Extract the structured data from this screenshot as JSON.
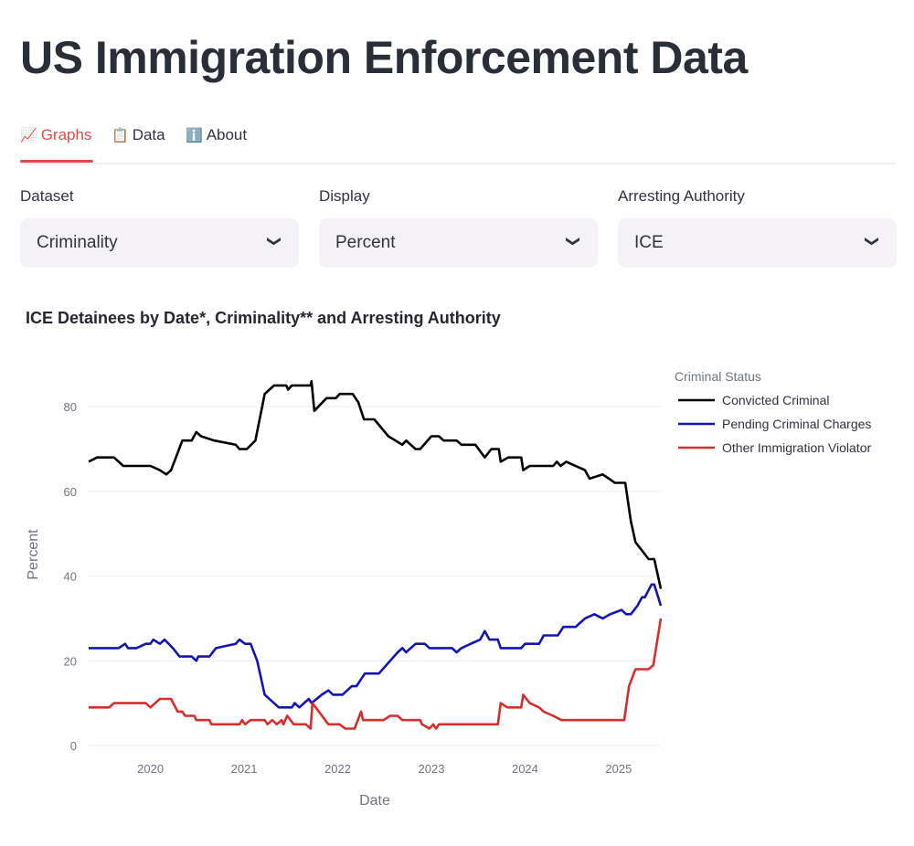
{
  "header": {
    "title": "US Immigration Enforcement Data"
  },
  "tabs": [
    {
      "label": "Graphs",
      "icon": "chart-increasing-icon",
      "active": true
    },
    {
      "label": "Data",
      "icon": "clipboard-icon",
      "active": false
    },
    {
      "label": "About",
      "icon": "info-icon",
      "active": false
    }
  ],
  "filters": [
    {
      "label": "Dataset",
      "value": "Criminality"
    },
    {
      "label": "Display",
      "value": "Percent"
    },
    {
      "label": "Arresting Authority",
      "value": "ICE"
    }
  ],
  "colors": {
    "accent": "#e04a4a",
    "convicted": "#000000",
    "pending": "#1414b4",
    "other": "#d62d2d"
  },
  "chart_data": {
    "type": "line",
    "title": "ICE Detainees by Date*, Criminality** and Arresting Authority",
    "xlabel": "Date",
    "ylabel": "Percent",
    "xlim": [
      2019.34,
      2025.45
    ],
    "ylim": [
      0,
      88
    ],
    "x_ticks": [
      "2020",
      "2021",
      "2022",
      "2023",
      "2024",
      "2025"
    ],
    "y_ticks": [
      "0",
      "20",
      "40",
      "60",
      "80"
    ],
    "grid": true,
    "legend": {
      "title": "Criminal Status",
      "placement": "right"
    },
    "series": [
      {
        "name": "Convicted Criminal",
        "color": "#000000",
        "points": [
          [
            2019.34,
            67
          ],
          [
            2019.43,
            68
          ],
          [
            2019.61,
            68
          ],
          [
            2019.71,
            66
          ],
          [
            2020.0,
            66
          ],
          [
            2020.1,
            65
          ],
          [
            2020.17,
            64
          ],
          [
            2020.22,
            65
          ],
          [
            2020.34,
            72
          ],
          [
            2020.44,
            72
          ],
          [
            2020.49,
            74
          ],
          [
            2020.54,
            73
          ],
          [
            2020.68,
            72
          ],
          [
            2020.91,
            71
          ],
          [
            2020.95,
            70
          ],
          [
            2021.03,
            70
          ],
          [
            2021.12,
            72
          ],
          [
            2021.22,
            83
          ],
          [
            2021.32,
            85
          ],
          [
            2021.45,
            85
          ],
          [
            2021.47,
            84
          ],
          [
            2021.51,
            85
          ],
          [
            2021.71,
            85
          ],
          [
            2021.72,
            86
          ],
          [
            2021.75,
            79
          ],
          [
            2021.88,
            82
          ],
          [
            2021.98,
            82
          ],
          [
            2022.02,
            83
          ],
          [
            2022.16,
            83
          ],
          [
            2022.22,
            81
          ],
          [
            2022.28,
            77
          ],
          [
            2022.39,
            77
          ],
          [
            2022.54,
            73
          ],
          [
            2022.69,
            71
          ],
          [
            2022.73,
            72
          ],
          [
            2022.83,
            70
          ],
          [
            2022.88,
            70
          ],
          [
            2023.0,
            73
          ],
          [
            2023.08,
            73
          ],
          [
            2023.13,
            72
          ],
          [
            2023.27,
            72
          ],
          [
            2023.32,
            71
          ],
          [
            2023.47,
            71
          ],
          [
            2023.57,
            68
          ],
          [
            2023.64,
            70
          ],
          [
            2023.72,
            70
          ],
          [
            2023.74,
            67
          ],
          [
            2023.82,
            68
          ],
          [
            2023.96,
            68
          ],
          [
            2023.98,
            65
          ],
          [
            2024.05,
            66
          ],
          [
            2024.3,
            66
          ],
          [
            2024.34,
            67
          ],
          [
            2024.38,
            66
          ],
          [
            2024.44,
            67
          ],
          [
            2024.64,
            65
          ],
          [
            2024.69,
            63
          ],
          [
            2024.83,
            64
          ],
          [
            2024.96,
            62
          ],
          [
            2025.07,
            62
          ],
          [
            2025.13,
            53
          ],
          [
            2025.18,
            48
          ],
          [
            2025.32,
            44
          ],
          [
            2025.38,
            44
          ],
          [
            2025.45,
            37
          ]
        ]
      },
      {
        "name": "Pending Criminal Charges",
        "color": "#1414b4",
        "points": [
          [
            2019.34,
            23
          ],
          [
            2019.66,
            23
          ],
          [
            2019.73,
            24
          ],
          [
            2019.76,
            23
          ],
          [
            2019.85,
            23
          ],
          [
            2019.95,
            24
          ],
          [
            2020.0,
            24
          ],
          [
            2020.03,
            25
          ],
          [
            2020.1,
            24
          ],
          [
            2020.15,
            25
          ],
          [
            2020.24,
            23
          ],
          [
            2020.31,
            21
          ],
          [
            2020.44,
            21
          ],
          [
            2020.49,
            20
          ],
          [
            2020.51,
            21
          ],
          [
            2020.63,
            21
          ],
          [
            2020.7,
            23
          ],
          [
            2020.91,
            24
          ],
          [
            2020.95,
            25
          ],
          [
            2021.01,
            24
          ],
          [
            2021.07,
            24
          ],
          [
            2021.14,
            20
          ],
          [
            2021.22,
            12
          ],
          [
            2021.37,
            9
          ],
          [
            2021.51,
            9
          ],
          [
            2021.54,
            10
          ],
          [
            2021.59,
            9
          ],
          [
            2021.69,
            11
          ],
          [
            2021.72,
            10
          ],
          [
            2021.83,
            12
          ],
          [
            2021.9,
            13
          ],
          [
            2021.95,
            12
          ],
          [
            2022.05,
            12
          ],
          [
            2022.15,
            14
          ],
          [
            2022.2,
            14
          ],
          [
            2022.29,
            17
          ],
          [
            2022.44,
            17
          ],
          [
            2022.64,
            22
          ],
          [
            2022.69,
            23
          ],
          [
            2022.73,
            22
          ],
          [
            2022.83,
            24
          ],
          [
            2022.93,
            24
          ],
          [
            2022.98,
            23
          ],
          [
            2023.22,
            23
          ],
          [
            2023.27,
            22
          ],
          [
            2023.32,
            23
          ],
          [
            2023.42,
            24
          ],
          [
            2023.52,
            25
          ],
          [
            2023.57,
            27
          ],
          [
            2023.62,
            25
          ],
          [
            2023.71,
            25
          ],
          [
            2023.74,
            23
          ],
          [
            2023.96,
            23
          ],
          [
            2024.0,
            24
          ],
          [
            2024.15,
            24
          ],
          [
            2024.2,
            26
          ],
          [
            2024.35,
            26
          ],
          [
            2024.41,
            28
          ],
          [
            2024.54,
            28
          ],
          [
            2024.64,
            30
          ],
          [
            2024.74,
            31
          ],
          [
            2024.83,
            30
          ],
          [
            2024.91,
            31
          ],
          [
            2025.03,
            32
          ],
          [
            2025.08,
            31
          ],
          [
            2025.13,
            31
          ],
          [
            2025.2,
            33
          ],
          [
            2025.25,
            35
          ],
          [
            2025.28,
            35
          ],
          [
            2025.35,
            38
          ],
          [
            2025.38,
            38
          ],
          [
            2025.45,
            33
          ]
        ]
      },
      {
        "name": "Other Immigration Violator",
        "color": "#d62d2d",
        "points": [
          [
            2019.34,
            9
          ],
          [
            2019.56,
            9
          ],
          [
            2019.61,
            10
          ],
          [
            2019.95,
            10
          ],
          [
            2020.0,
            9
          ],
          [
            2020.1,
            11
          ],
          [
            2020.22,
            11
          ],
          [
            2020.29,
            8
          ],
          [
            2020.34,
            8
          ],
          [
            2020.37,
            7
          ],
          [
            2020.47,
            7
          ],
          [
            2020.49,
            6
          ],
          [
            2020.63,
            6
          ],
          [
            2020.65,
            5
          ],
          [
            2020.95,
            5
          ],
          [
            2020.98,
            6
          ],
          [
            2021.01,
            5
          ],
          [
            2021.07,
            6
          ],
          [
            2021.22,
            6
          ],
          [
            2021.25,
            5
          ],
          [
            2021.3,
            6
          ],
          [
            2021.35,
            5
          ],
          [
            2021.4,
            6
          ],
          [
            2021.42,
            5
          ],
          [
            2021.46,
            7
          ],
          [
            2021.53,
            5
          ],
          [
            2021.66,
            5
          ],
          [
            2021.71,
            4
          ],
          [
            2021.73,
            10
          ],
          [
            2021.9,
            5
          ],
          [
            2022.02,
            5
          ],
          [
            2022.08,
            4
          ],
          [
            2022.18,
            4
          ],
          [
            2022.25,
            8
          ],
          [
            2022.27,
            6
          ],
          [
            2022.49,
            6
          ],
          [
            2022.56,
            7
          ],
          [
            2022.64,
            7
          ],
          [
            2022.69,
            6
          ],
          [
            2022.88,
            6
          ],
          [
            2022.9,
            5
          ],
          [
            2022.98,
            4
          ],
          [
            2023.02,
            5
          ],
          [
            2023.05,
            4
          ],
          [
            2023.08,
            5
          ],
          [
            2023.71,
            5
          ],
          [
            2023.74,
            10
          ],
          [
            2023.81,
            9
          ],
          [
            2023.96,
            9
          ],
          [
            2023.98,
            12
          ],
          [
            2024.05,
            10
          ],
          [
            2024.15,
            9
          ],
          [
            2024.2,
            8
          ],
          [
            2024.3,
            7
          ],
          [
            2024.39,
            6
          ],
          [
            2025.06,
            6
          ],
          [
            2025.11,
            14
          ],
          [
            2025.18,
            18
          ],
          [
            2025.32,
            18
          ],
          [
            2025.37,
            19
          ],
          [
            2025.45,
            30
          ]
        ]
      }
    ]
  }
}
